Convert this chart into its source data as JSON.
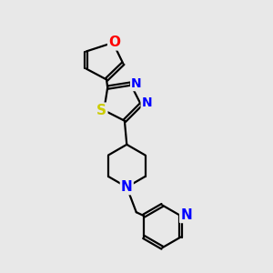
{
  "background_color": "#e8e8e8",
  "bond_color": "#000000",
  "atom_colors": {
    "O": "#ff0000",
    "N": "#0000ff",
    "S": "#cccc00",
    "C": "#000000"
  },
  "line_width": 1.6,
  "font_size": 10,
  "figsize": [
    3.0,
    3.0
  ],
  "dpi": 100
}
